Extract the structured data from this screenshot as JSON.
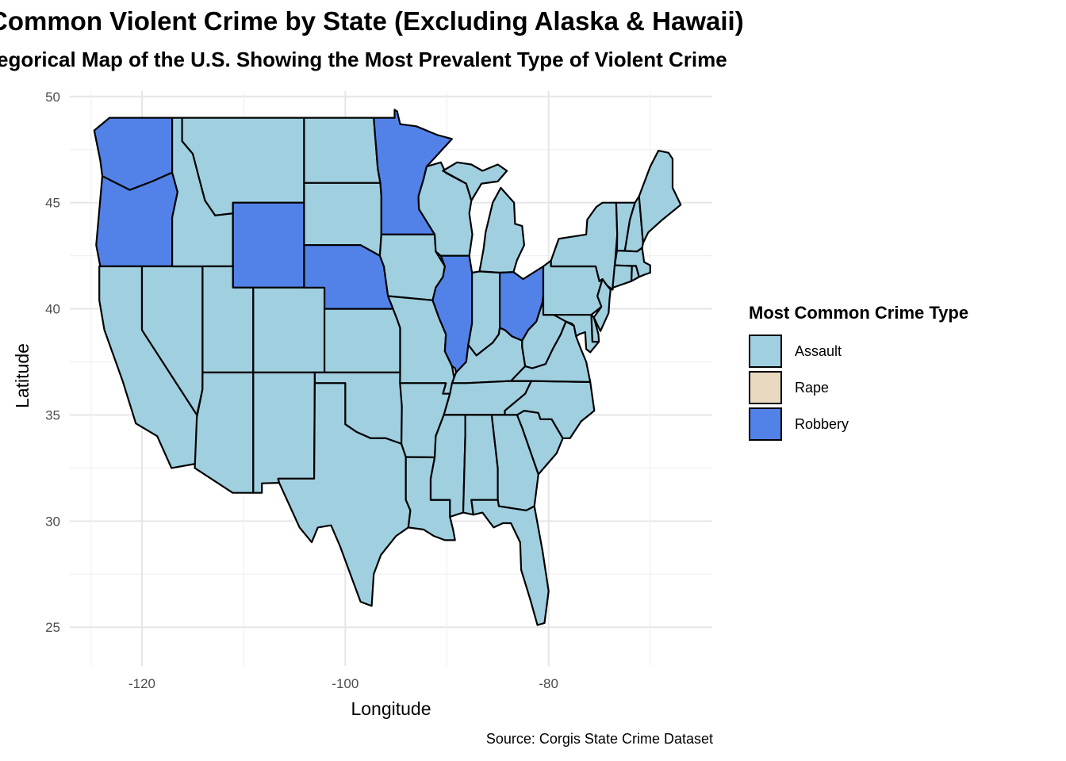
{
  "title": "Common Violent Crime by State (Excluding Alaska & Hawaii)",
  "subtitle": "egorical Map of the U.S. Showing the Most Prevalent Type of Violent Crime",
  "caption": "Source: Corgis State Crime Dataset",
  "colors": {
    "Assault": "#a0cfe0",
    "Rape": "#e9d9c1",
    "Robbery": "#5282e8",
    "grid_major": "#e6e6e6",
    "grid_minor": "#f0f0f0",
    "border": "#000000"
  },
  "chart_data": {
    "type": "choropleth",
    "title": "Common Violent Crime by State (Excluding Alaska & Hawaii)",
    "xlabel": "Longitude",
    "ylabel": "Latitude",
    "xlim": [
      -127,
      -65
    ],
    "ylim": [
      24.5,
      50
    ],
    "x_ticks": [
      -120,
      -100,
      -80
    ],
    "y_ticks": [
      25,
      30,
      35,
      40,
      45,
      50
    ],
    "grid": true,
    "legend_position": "right",
    "legend": {
      "title": "Most Common Crime Type",
      "categories": [
        "Assault",
        "Rape",
        "Robbery"
      ]
    },
    "states": [
      {
        "name": "Washington",
        "category": "Robbery"
      },
      {
        "name": "Oregon",
        "category": "Robbery"
      },
      {
        "name": "California",
        "category": "Assault"
      },
      {
        "name": "Nevada",
        "category": "Assault"
      },
      {
        "name": "Idaho",
        "category": "Assault"
      },
      {
        "name": "Montana",
        "category": "Assault"
      },
      {
        "name": "Wyoming",
        "category": "Robbery"
      },
      {
        "name": "Utah",
        "category": "Assault"
      },
      {
        "name": "Arizona",
        "category": "Assault"
      },
      {
        "name": "Colorado",
        "category": "Assault"
      },
      {
        "name": "New Mexico",
        "category": "Assault"
      },
      {
        "name": "North Dakota",
        "category": "Assault"
      },
      {
        "name": "South Dakota",
        "category": "Assault"
      },
      {
        "name": "Nebraska",
        "category": "Robbery"
      },
      {
        "name": "Kansas",
        "category": "Assault"
      },
      {
        "name": "Oklahoma",
        "category": "Assault"
      },
      {
        "name": "Texas",
        "category": "Assault"
      },
      {
        "name": "Minnesota",
        "category": "Robbery"
      },
      {
        "name": "Iowa",
        "category": "Assault"
      },
      {
        "name": "Missouri",
        "category": "Assault"
      },
      {
        "name": "Arkansas",
        "category": "Assault"
      },
      {
        "name": "Louisiana",
        "category": "Assault"
      },
      {
        "name": "Wisconsin",
        "category": "Assault"
      },
      {
        "name": "Illinois",
        "category": "Robbery"
      },
      {
        "name": "Michigan",
        "category": "Assault"
      },
      {
        "name": "Indiana",
        "category": "Assault"
      },
      {
        "name": "Ohio",
        "category": "Robbery"
      },
      {
        "name": "Kentucky",
        "category": "Assault"
      },
      {
        "name": "Tennessee",
        "category": "Assault"
      },
      {
        "name": "Mississippi",
        "category": "Assault"
      },
      {
        "name": "Alabama",
        "category": "Assault"
      },
      {
        "name": "Georgia",
        "category": "Assault"
      },
      {
        "name": "Florida",
        "category": "Assault"
      },
      {
        "name": "South Carolina",
        "category": "Assault"
      },
      {
        "name": "North Carolina",
        "category": "Assault"
      },
      {
        "name": "Virginia",
        "category": "Assault"
      },
      {
        "name": "West Virginia",
        "category": "Assault"
      },
      {
        "name": "Pennsylvania",
        "category": "Assault"
      },
      {
        "name": "New York",
        "category": "Assault"
      },
      {
        "name": "New Jersey",
        "category": "Assault"
      },
      {
        "name": "Delaware",
        "category": "Assault"
      },
      {
        "name": "Maryland",
        "category": "Assault"
      },
      {
        "name": "Vermont",
        "category": "Assault"
      },
      {
        "name": "New Hampshire",
        "category": "Assault"
      },
      {
        "name": "Maine",
        "category": "Assault"
      },
      {
        "name": "Massachusetts",
        "category": "Assault"
      },
      {
        "name": "Connecticut",
        "category": "Assault"
      },
      {
        "name": "Rhode Island",
        "category": "Assault"
      }
    ]
  }
}
